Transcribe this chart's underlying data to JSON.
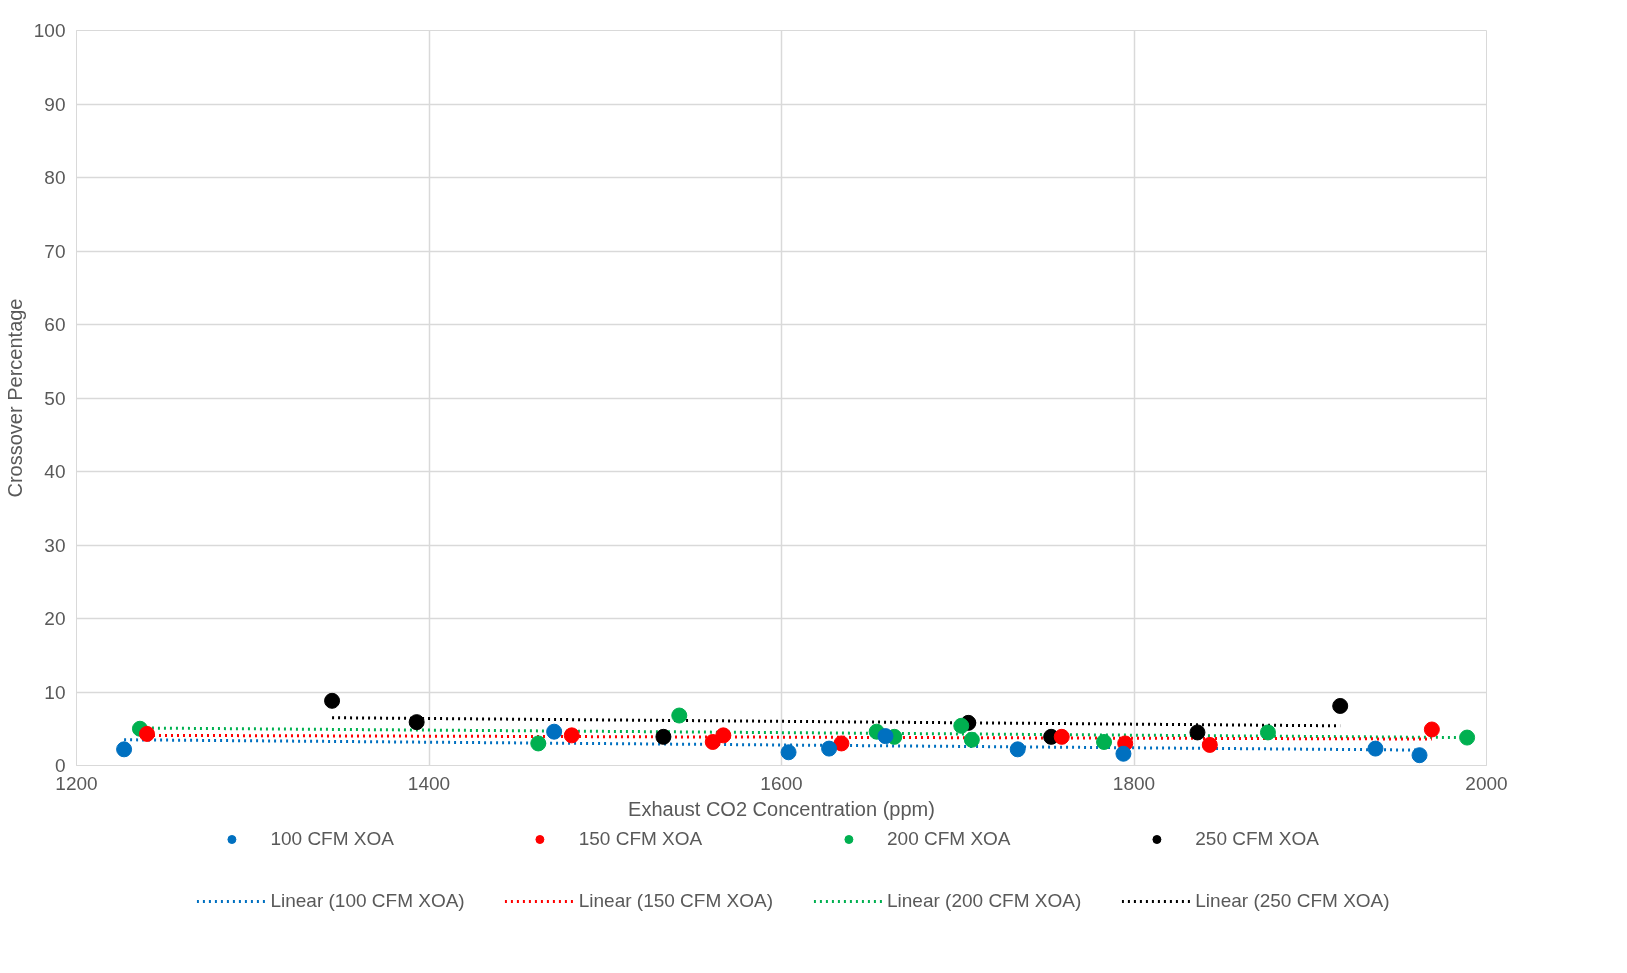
{
  "chart_data": {
    "type": "scatter",
    "xlabel": "Exhaust CO2 Concentration (ppm)",
    "ylabel": "Crossover Percentage",
    "xlim": [
      1200,
      2000
    ],
    "xticks": [
      1200,
      1400,
      1600,
      1800,
      2000
    ],
    "ylim": [
      0,
      100
    ],
    "yticks": [
      0,
      10,
      20,
      30,
      40,
      50,
      60,
      70,
      80,
      90,
      100
    ],
    "grid": true,
    "legend": "bottom",
    "marker": "circle",
    "series": [
      {
        "name": "100 CFM XOA",
        "color": "#0070c0",
        "x": [
          1227,
          1471,
          1604,
          1627,
          1659,
          1734,
          1794,
          1937,
          1962
        ],
        "values": [
          2.2,
          4.6,
          1.8,
          2.3,
          4.0,
          2.2,
          1.6,
          2.3,
          1.4
        ]
      },
      {
        "name": "150 CFM XOA",
        "color": "#ff0000",
        "x": [
          1240,
          1481,
          1561,
          1567,
          1634,
          1759,
          1795,
          1843,
          1969
        ],
        "values": [
          4.3,
          4.1,
          3.2,
          4.1,
          3.0,
          3.9,
          3.0,
          2.8,
          4.9
        ]
      },
      {
        "name": "200 CFM XOA",
        "color": "#00b050",
        "x": [
          1236,
          1462,
          1542,
          1654,
          1664,
          1702,
          1708,
          1783,
          1876,
          1989
        ],
        "values": [
          5.0,
          3.0,
          6.8,
          4.6,
          3.9,
          5.4,
          3.5,
          3.2,
          4.5,
          3.8
        ]
      },
      {
        "name": "250 CFM XOA",
        "color": "#000000",
        "x": [
          1345,
          1393,
          1533,
          1706,
          1753,
          1836,
          1917
        ],
        "values": [
          8.8,
          5.9,
          3.9,
          5.8,
          3.9,
          4.5,
          8.1
        ]
      },
      {
        "name": "Linear (100 CFM XOA)",
        "type": "line",
        "line_style": "dotted",
        "marker": "none",
        "color": "#0070c0",
        "x": [
          1227,
          1962
        ],
        "values": [
          3.5,
          2.1
        ]
      },
      {
        "name": "Linear (150 CFM XOA)",
        "type": "line",
        "line_style": "dotted",
        "marker": "none",
        "color": "#ff0000",
        "x": [
          1240,
          1969
        ],
        "values": [
          4.1,
          3.6
        ]
      },
      {
        "name": "Linear (200 CFM XOA)",
        "type": "line",
        "line_style": "dotted",
        "marker": "none",
        "color": "#00b050",
        "x": [
          1236,
          1989
        ],
        "values": [
          5.1,
          3.8
        ]
      },
      {
        "name": "Linear (250 CFM XOA)",
        "type": "line",
        "line_style": "dotted",
        "marker": "none",
        "color": "#000000",
        "x": [
          1345,
          1917
        ],
        "values": [
          6.5,
          5.4
        ]
      }
    ]
  }
}
